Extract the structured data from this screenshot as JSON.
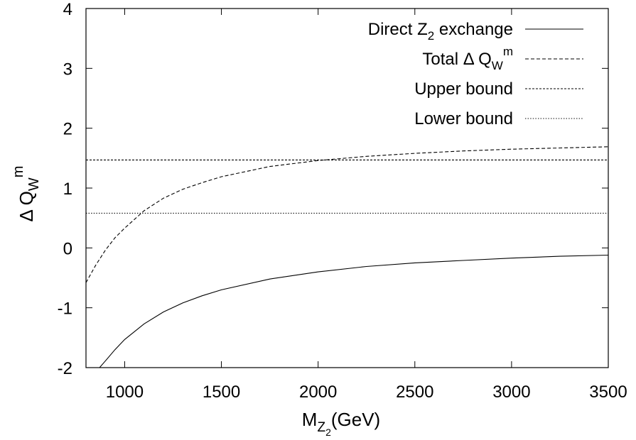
{
  "chart_data": {
    "type": "line",
    "xlabel": {
      "main": "M",
      "sub1": "Z",
      "sub2": "2",
      "rest": "(GeV)"
    },
    "ylabel": {
      "pre": "Δ Q",
      "sub": "W",
      "sup": "m"
    },
    "xlim": [
      800,
      3500
    ],
    "ylim": [
      -2,
      4
    ],
    "xticks": [
      1000,
      1500,
      2000,
      2500,
      3000,
      3500
    ],
    "yticks": [
      -2,
      -1,
      0,
      1,
      2,
      3,
      4
    ],
    "grid": false,
    "legend_position": "top-right",
    "series": [
      {
        "name": {
          "pre": "Direct Z",
          "sub": "2",
          "post": " exchange"
        },
        "style": "solid",
        "x": [
          870,
          900,
          950,
          1000,
          1100,
          1200,
          1300,
          1400,
          1500,
          1750,
          2000,
          2250,
          2500,
          2750,
          3000,
          3250,
          3500
        ],
        "y": [
          -2.0,
          -1.89,
          -1.7,
          -1.53,
          -1.27,
          -1.07,
          -0.92,
          -0.8,
          -0.7,
          -0.52,
          -0.4,
          -0.31,
          -0.25,
          -0.21,
          -0.17,
          -0.14,
          -0.12
        ]
      },
      {
        "name": {
          "pre": "Total Δ Q",
          "sub": "W",
          "sup": "m"
        },
        "style": "dashed",
        "x": [
          800,
          850,
          900,
          950,
          1000,
          1100,
          1200,
          1300,
          1400,
          1500,
          1750,
          2000,
          2250,
          2500,
          2750,
          3000,
          3250,
          3500
        ],
        "y": [
          -0.58,
          -0.29,
          -0.04,
          0.17,
          0.33,
          0.62,
          0.83,
          0.98,
          1.09,
          1.19,
          1.36,
          1.46,
          1.53,
          1.58,
          1.62,
          1.65,
          1.67,
          1.69
        ]
      },
      {
        "name": {
          "pre": "Upper  bound"
        },
        "style": "dotted-dense",
        "x": [
          800,
          3500
        ],
        "y": [
          1.47,
          1.47
        ]
      },
      {
        "name": {
          "pre": "Lower bound"
        },
        "style": "dotted",
        "x": [
          800,
          3500
        ],
        "y": [
          0.58,
          0.58
        ]
      }
    ]
  }
}
